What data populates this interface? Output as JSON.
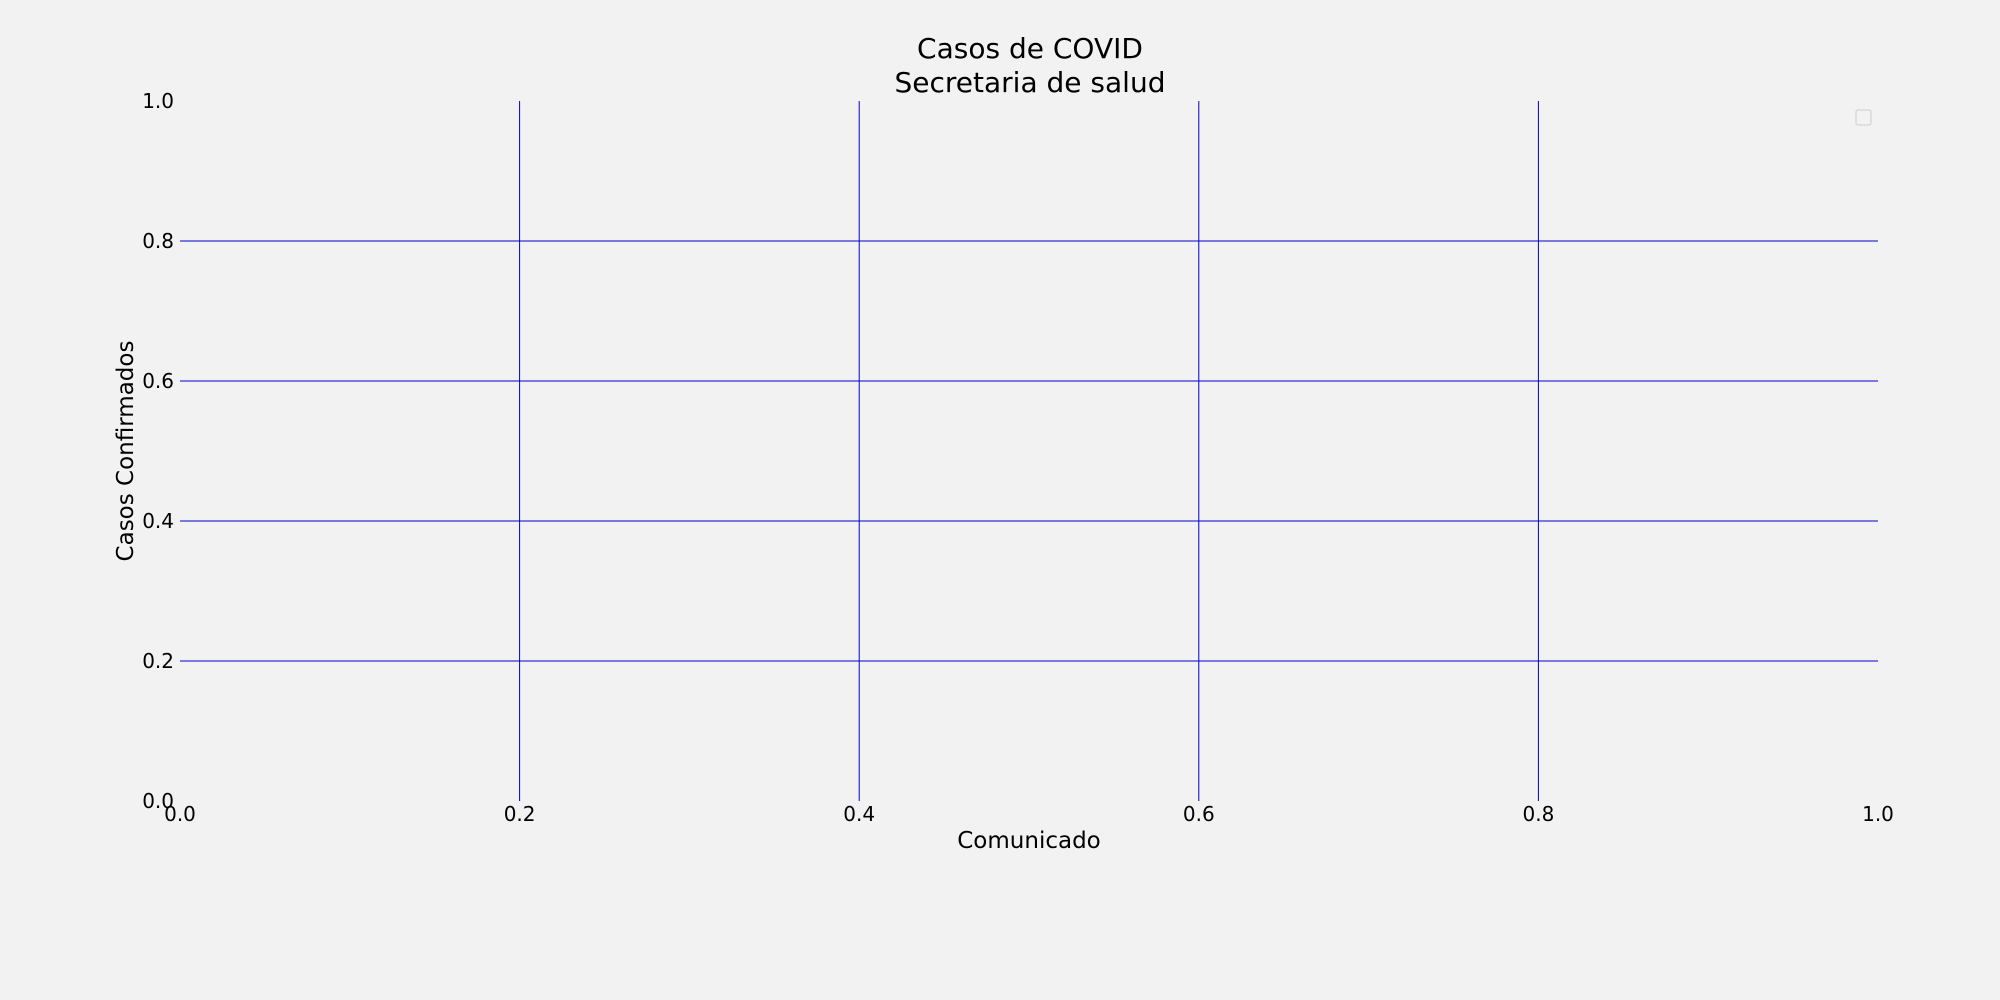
{
  "chart_data": {
    "type": "line",
    "title": [
      "Casos de COVID",
      "Secretaria de salud"
    ],
    "xlabel": "Comunicado",
    "ylabel": "Casos Confirmados",
    "xlim": [
      0,
      1
    ],
    "ylim": [
      0,
      1
    ],
    "xticks": [
      "0.0",
      "0.2",
      "0.4",
      "0.6",
      "0.8",
      "1.0"
    ],
    "yticks": [
      "0.0",
      "0.2",
      "0.4",
      "0.6",
      "0.8",
      "1.0"
    ],
    "series": [],
    "grid": true,
    "legend": "top-right",
    "colors": {
      "background": "#f2f2f2",
      "grid": "#0000cc",
      "text": "#000000",
      "legend_border": "#cccccc"
    }
  }
}
